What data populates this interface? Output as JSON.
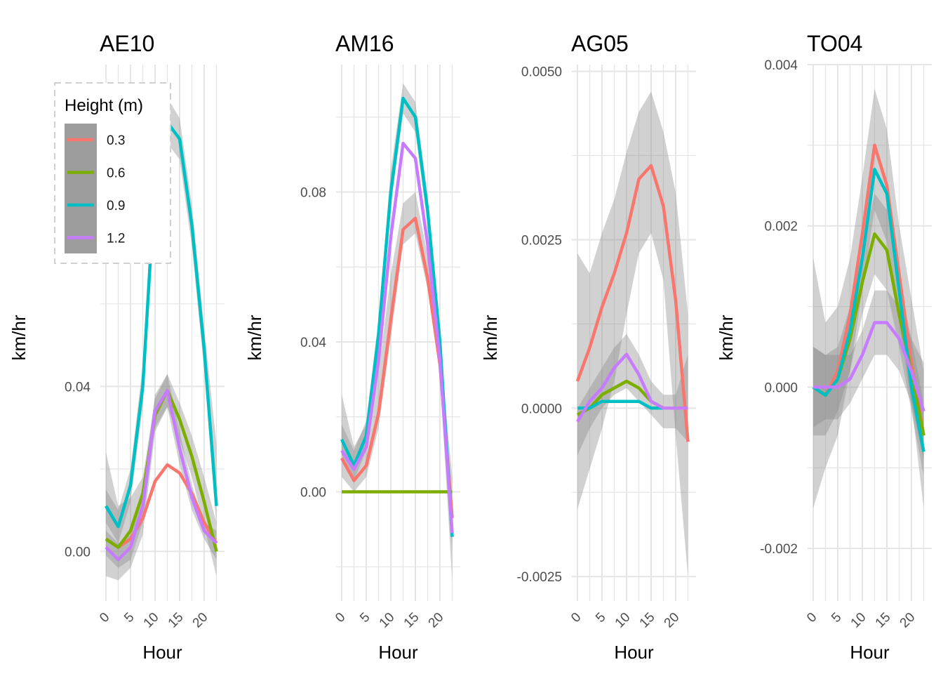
{
  "chart_data": {
    "type": "line",
    "facets": [
      {
        "title": "AE10",
        "xlabel": "Hour",
        "ylabel": "km/hr",
        "xlim": [
          0,
          23
        ],
        "ylim": [
          -0.011,
          0.118
        ],
        "x_ticks": [
          0,
          5,
          10,
          15,
          20
        ],
        "y_ticks": [
          0.0,
          0.04
        ],
        "y_tick_labels": [
          "0.00",
          "0.04"
        ],
        "series": [
          {
            "name": "0.3",
            "x": [
              0,
              2.5,
              5,
              7.5,
              10,
              12.5,
              15,
              17.5,
              20,
              22.5
            ],
            "y": [
              0.003,
              0.001,
              0.003,
              0.008,
              0.017,
              0.021,
              0.019,
              0.014,
              0.007,
              0.002
            ]
          },
          {
            "name": "0.6",
            "x": [
              0,
              2.5,
              5,
              7.5,
              10,
              12.5,
              15,
              17.5,
              20,
              22.5
            ],
            "y": [
              0.003,
              0.001,
              0.005,
              0.014,
              0.033,
              0.039,
              0.032,
              0.023,
              0.012,
              0.0
            ]
          },
          {
            "name": "0.9",
            "x": [
              0,
              2.5,
              5,
              7.5,
              10,
              12.5,
              15,
              17.5,
              20,
              22.5
            ],
            "y": [
              0.011,
              0.006,
              0.016,
              0.04,
              0.09,
              0.104,
              0.1,
              0.079,
              0.049,
              0.011
            ]
          },
          {
            "name": "1.2",
            "x": [
              0,
              2.5,
              5,
              7.5,
              10,
              12.5,
              15,
              17.5,
              20,
              22.5
            ],
            "y": [
              0.001,
              -0.002,
              0.001,
              0.011,
              0.034,
              0.039,
              0.025,
              0.013,
              0.005,
              0.002
            ]
          }
        ],
        "bands": [
          {
            "x": [
              0,
              2.5,
              5,
              7.5,
              10,
              12.5,
              15,
              17.5,
              20,
              22.5
            ],
            "lo": [
              -0.006,
              -0.007,
              -0.004,
              0.004,
              0.029,
              0.035,
              0.027,
              0.018,
              0.006,
              -0.006
            ],
            "hi": [
              0.024,
              0.011,
              0.013,
              0.018,
              0.037,
              0.043,
              0.036,
              0.028,
              0.018,
              0.007
            ]
          },
          {
            "x": [
              0,
              2.5,
              5,
              7.5,
              10,
              12.5,
              15,
              17.5,
              20,
              22.5
            ],
            "lo": [
              -0.001,
              -0.004,
              -0.002,
              0.007,
              0.03,
              0.035,
              0.021,
              0.01,
              0.003,
              -0.002
            ],
            "hi": [
              0.005,
              0.002,
              0.004,
              0.015,
              0.038,
              0.043,
              0.029,
              0.016,
              0.007,
              0.005
            ]
          },
          {
            "x": [
              0,
              2.5,
              5,
              7.5,
              10,
              12.5,
              15,
              17.5,
              20,
              22.5
            ],
            "lo": [
              0.007,
              0.002,
              0.012,
              0.035,
              0.085,
              0.099,
              0.095,
              0.074,
              0.044,
              0.006
            ],
            "hi": [
              0.015,
              0.01,
              0.02,
              0.045,
              0.095,
              0.11,
              0.105,
              0.084,
              0.054,
              0.026
            ]
          }
        ]
      },
      {
        "title": "AM16",
        "xlabel": "Hour",
        "ylabel": "km/hr",
        "xlim": [
          0,
          23
        ],
        "ylim": [
          -0.028,
          0.114
        ],
        "x_ticks": [
          0,
          5,
          10,
          15,
          20
        ],
        "y_ticks": [
          0.0,
          0.04,
          0.08
        ],
        "y_tick_labels": [
          "0.00",
          "0.04",
          "0.08"
        ],
        "series": [
          {
            "name": "0.3",
            "x": [
              0,
              2.5,
              5,
              7.5,
              10,
              12.5,
              15,
              17.5,
              20,
              22.5
            ],
            "y": [
              0.009,
              0.003,
              0.007,
              0.021,
              0.046,
              0.07,
              0.073,
              0.057,
              0.034,
              -0.007
            ]
          },
          {
            "name": "0.6",
            "x": [
              0,
              2.5,
              5,
              7.5,
              10,
              12.5,
              15,
              17.5,
              20,
              22.5
            ],
            "y": [
              0.0,
              0.0,
              0.0,
              0.0,
              0.0,
              0.0,
              0.0,
              0.0,
              0.0,
              0.0
            ]
          },
          {
            "name": "0.9",
            "x": [
              0,
              2.5,
              5,
              7.5,
              10,
              12.5,
              15,
              17.5,
              20,
              22.5
            ],
            "y": [
              0.014,
              0.007,
              0.015,
              0.042,
              0.08,
              0.105,
              0.1,
              0.075,
              0.04,
              -0.012
            ]
          },
          {
            "name": "1.2",
            "x": [
              0,
              2.5,
              5,
              7.5,
              10,
              12.5,
              15,
              17.5,
              20,
              22.5
            ],
            "y": [
              0.011,
              0.006,
              0.012,
              0.035,
              0.068,
              0.093,
              0.089,
              0.066,
              0.035,
              -0.011
            ]
          }
        ],
        "bands": [
          {
            "x": [
              0,
              2.5,
              5,
              7.5,
              10,
              12.5,
              15,
              17.5,
              20,
              22.5
            ],
            "lo": [
              0.004,
              0.0,
              0.004,
              0.017,
              0.041,
              0.066,
              0.069,
              0.054,
              0.031,
              -0.024
            ],
            "hi": [
              0.026,
              0.012,
              0.018,
              0.032,
              0.058,
              0.077,
              0.08,
              0.063,
              0.039,
              0.004
            ]
          },
          {
            "x": [
              0,
              2.5,
              5,
              7.5,
              10,
              12.5,
              15,
              17.5,
              20,
              22.5
            ],
            "lo": [
              0.01,
              0.003,
              0.011,
              0.038,
              0.076,
              0.101,
              0.096,
              0.071,
              0.036,
              -0.016
            ],
            "hi": [
              0.018,
              0.011,
              0.019,
              0.046,
              0.086,
              0.109,
              0.104,
              0.079,
              0.044,
              -0.008
            ]
          }
        ]
      },
      {
        "title": "AG05",
        "xlabel": "Hour",
        "ylabel": "km/hr",
        "xlim": [
          0,
          23
        ],
        "ylim": [
          -0.0028,
          0.0051
        ],
        "x_ticks": [
          0,
          5,
          10,
          15,
          20
        ],
        "y_ticks": [
          -0.0025,
          0.0,
          0.0025,
          0.005
        ],
        "y_tick_labels": [
          "-0.0025",
          "0.0000",
          "0.0025",
          "0.0050"
        ],
        "series": [
          {
            "name": "0.3",
            "x": [
              0,
              2.5,
              5,
              7.5,
              10,
              12.5,
              15,
              17.5,
              20,
              22.5
            ],
            "y": [
              0.0004,
              0.0009,
              0.0015,
              0.002,
              0.0026,
              0.0034,
              0.0036,
              0.003,
              0.0016,
              -0.0005
            ]
          },
          {
            "name": "0.6",
            "x": [
              0,
              2.5,
              5,
              7.5,
              10,
              12.5,
              15,
              17.5,
              20,
              22.5
            ],
            "y": [
              -0.0001,
              0.0,
              0.0002,
              0.0003,
              0.0004,
              0.0003,
              0.0001,
              0.0,
              0.0,
              0.0
            ]
          },
          {
            "name": "0.9",
            "x": [
              0,
              2.5,
              5,
              7.5,
              10,
              12.5,
              15,
              17.5,
              20,
              22.5
            ],
            "y": [
              0.0,
              0.0,
              0.0001,
              0.0001,
              0.0001,
              0.0001,
              0.0,
              0.0,
              0.0,
              0.0
            ]
          },
          {
            "name": "1.2",
            "x": [
              0,
              2.5,
              5,
              7.5,
              10,
              12.5,
              15,
              17.5,
              20,
              22.5
            ],
            "y": [
              -0.0002,
              0.0001,
              0.0003,
              0.0006,
              0.0008,
              0.0005,
              0.0001,
              0.0,
              0.0,
              0.0
            ]
          }
        ],
        "bands": [
          {
            "x": [
              0,
              2.5,
              5,
              7.5,
              10,
              12.5,
              15,
              17.5,
              20,
              22.5
            ],
            "lo": [
              -0.0015,
              -0.0009,
              -0.0003,
              0.0004,
              0.0014,
              0.0023,
              0.0026,
              0.0019,
              -0.0004,
              -0.0025
            ],
            "hi": [
              0.0023,
              0.002,
              0.0026,
              0.0031,
              0.0038,
              0.0044,
              0.0047,
              0.0041,
              0.0032,
              0.0014
            ]
          },
          {
            "x": [
              0,
              2.5,
              5,
              7.5,
              10,
              12.5,
              15,
              17.5,
              20,
              22.5
            ],
            "lo": [
              -0.0007,
              -0.0003,
              0.0,
              0.0002,
              0.0003,
              0.0001,
              -0.0001,
              -0.0003,
              -0.0003,
              -0.0005
            ],
            "hi": [
              0.0,
              0.0003,
              0.0006,
              0.0009,
              0.0011,
              0.0008,
              0.0004,
              0.0002,
              0.0002,
              0.0008
            ]
          }
        ]
      },
      {
        "title": "TO04",
        "xlabel": "Hour",
        "ylabel": "km/hr",
        "xlim": [
          0,
          23
        ],
        "ylim": [
          -0.0026,
          0.004
        ],
        "x_ticks": [
          0,
          5,
          10,
          15,
          20
        ],
        "y_ticks": [
          -0.002,
          0.0,
          0.002,
          0.004
        ],
        "y_tick_labels": [
          "-0.002",
          "0.000",
          "0.002",
          "0.004"
        ],
        "series": [
          {
            "name": "0.3",
            "x": [
              0,
              2.5,
              5,
              7.5,
              10,
              12.5,
              15,
              17.5,
              20,
              22.5
            ],
            "y": [
              0.0,
              -0.0001,
              0.0002,
              0.0009,
              0.0019,
              0.003,
              0.0025,
              0.0014,
              0.0003,
              -0.0006
            ]
          },
          {
            "name": "0.6",
            "x": [
              0,
              2.5,
              5,
              7.5,
              10,
              12.5,
              15,
              17.5,
              20,
              22.5
            ],
            "y": [
              0.0,
              -0.0001,
              0.0001,
              0.0006,
              0.0013,
              0.0019,
              0.0017,
              0.0009,
              0.0002,
              -0.0006
            ]
          },
          {
            "name": "0.9",
            "x": [
              0,
              2.5,
              5,
              7.5,
              10,
              12.5,
              15,
              17.5,
              20,
              22.5
            ],
            "y": [
              0.0,
              -0.0001,
              0.0001,
              0.0007,
              0.0016,
              0.0027,
              0.0024,
              0.0012,
              0.0,
              -0.0008
            ]
          },
          {
            "name": "1.2",
            "x": [
              0,
              2.5,
              5,
              7.5,
              10,
              12.5,
              15,
              17.5,
              20,
              22.5
            ],
            "y": [
              0.0,
              0.0,
              0.0,
              0.0001,
              0.0004,
              0.0008,
              0.0008,
              0.0006,
              0.0002,
              -0.0003
            ]
          }
        ],
        "bands": [
          {
            "x": [
              0,
              2.5,
              5,
              7.5,
              10,
              12.5,
              15,
              17.5,
              20,
              22.5
            ],
            "lo": [
              -0.0015,
              -0.001,
              -0.0006,
              0.0002,
              0.0012,
              0.0022,
              0.0018,
              0.0008,
              -0.0002,
              -0.0015
            ],
            "hi": [
              0.0016,
              0.0008,
              0.001,
              0.0016,
              0.0026,
              0.0037,
              0.0032,
              0.002,
              0.0011,
              0.0002
            ]
          },
          {
            "x": [
              0,
              2.5,
              5,
              7.5,
              10,
              12.5,
              15,
              17.5,
              20,
              22.5
            ],
            "lo": [
              -0.0006,
              -0.0006,
              -0.0003,
              0.0002,
              0.0009,
              0.0014,
              0.0012,
              0.0005,
              -0.0003,
              -0.0011
            ],
            "hi": [
              0.0005,
              0.0004,
              0.0005,
              0.001,
              0.0017,
              0.0024,
              0.0022,
              0.0013,
              0.0006,
              -0.0002
            ]
          },
          {
            "x": [
              0,
              2.5,
              5,
              7.5,
              10,
              12.5,
              15,
              17.5,
              20,
              22.5
            ],
            "lo": [
              -0.0005,
              -0.0004,
              -0.0004,
              -0.0002,
              0.0001,
              0.0004,
              0.0004,
              0.0002,
              -0.0002,
              -0.0009
            ],
            "hi": [
              0.0005,
              0.0004,
              0.0004,
              0.0004,
              0.0007,
              0.0012,
              0.0012,
              0.001,
              0.0006,
              0.0003
            ]
          }
        ]
      }
    ],
    "legend": {
      "title": "Height (m)",
      "entries": [
        "0.3",
        "0.6",
        "0.9",
        "1.2"
      ],
      "placement": "top-left, inside first panel"
    },
    "grid": true
  },
  "colors": {
    "series": [
      "#F8766D",
      "#7CAE00",
      "#00BFC4",
      "#C77CFF"
    ],
    "band": "#8c8c8c",
    "grid": "#e5e5e5"
  }
}
